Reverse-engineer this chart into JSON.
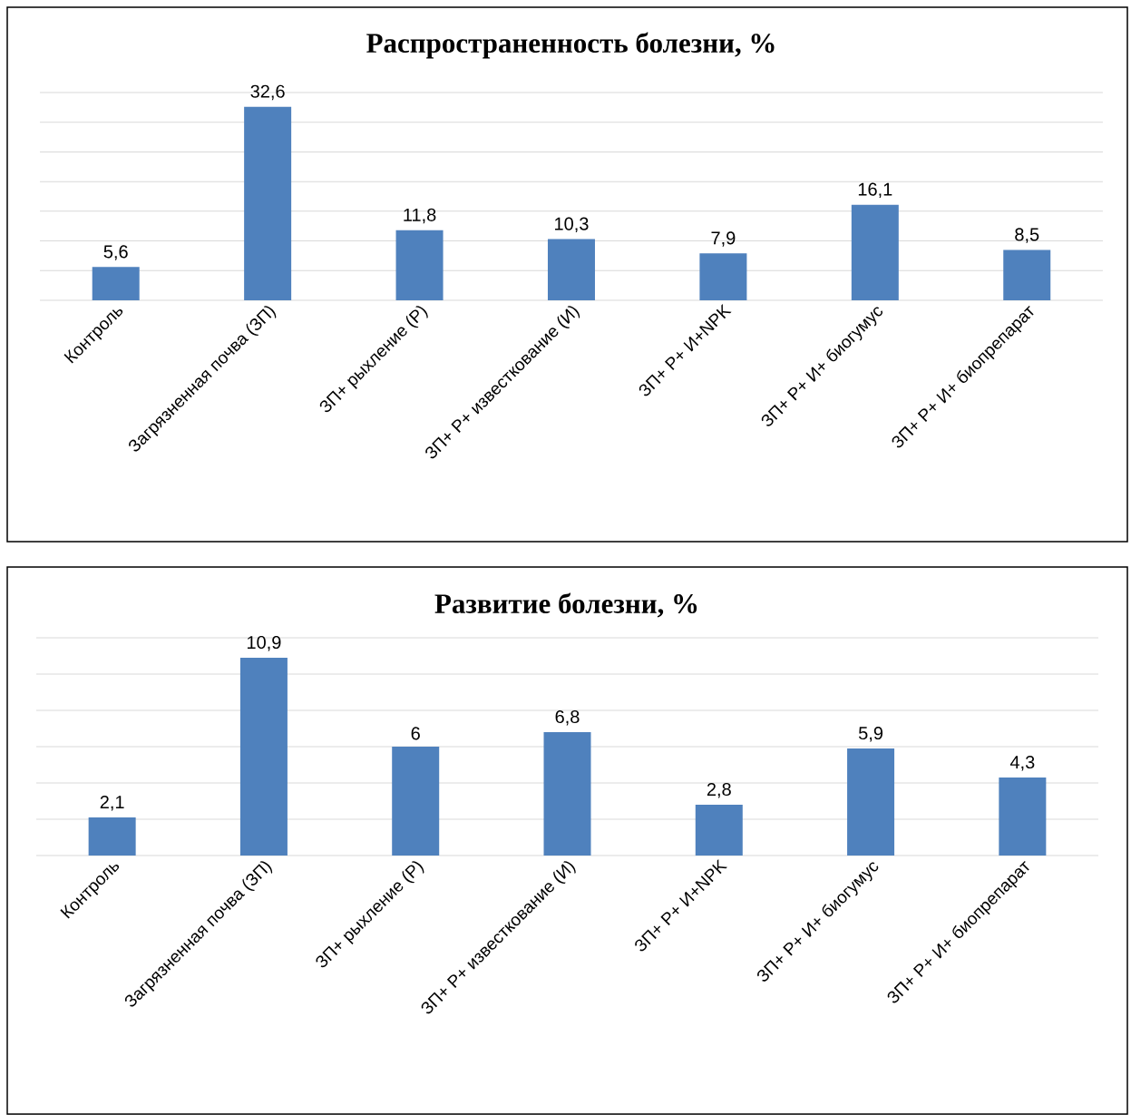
{
  "chart_data": [
    {
      "type": "bar",
      "title": "Распространенность болезни, %",
      "categories": [
        "Контроль",
        "Загрязненная почва (ЗП)",
        "ЗП+ рыхление (Р)",
        "ЗП+ Р+ известкование (И)",
        "ЗП+ Р+ И+NPK",
        "ЗП+ Р+ И+ биогумус",
        "ЗП+ Р+ И+ биопрепарат"
      ],
      "values": [
        5.6,
        32.6,
        11.8,
        10.3,
        7.9,
        16.1,
        8.5
      ],
      "value_labels": [
        "5,6",
        "32,6",
        "11,8",
        "10,3",
        "7,9",
        "16,1",
        "8,5"
      ],
      "color": "#4f81bd",
      "ylim": [
        0,
        35
      ],
      "yticks": [
        {
          "value": 0,
          "label": null
        },
        {
          "value": 5,
          "label": null
        },
        {
          "value": 10,
          "label": null
        },
        {
          "value": 15,
          "label": null
        },
        {
          "value": 20,
          "label": null
        },
        {
          "value": 25,
          "label": null
        },
        {
          "value": 30,
          "label": null
        },
        {
          "value": 35,
          "label": null
        }
      ],
      "grid": "y",
      "tick_labels": "x"
    },
    {
      "type": "bar",
      "title": "Развитие болезни, %",
      "categories": [
        "Контроль",
        "Загрязненная почва (ЗП)",
        "ЗП+ рыхление (Р)",
        "ЗП+ Р+ известкование (И)",
        "ЗП+ Р+ И+NPK",
        "ЗП+ Р+ И+ биогумус",
        "ЗП+ Р+ И+ биопрепарат"
      ],
      "values": [
        2.1,
        10.9,
        6,
        6.8,
        2.8,
        5.9,
        4.3
      ],
      "value_labels": [
        "2,1",
        "10,9",
        "6",
        "6,8",
        "2,8",
        "5,9",
        "4,3"
      ],
      "color": "#4f81bd",
      "ylim": [
        0,
        12
      ],
      "yticks": [
        {
          "value": 0,
          "label": null
        },
        {
          "value": 2,
          "label": null
        },
        {
          "value": 4,
          "label": null
        },
        {
          "value": 6,
          "label": null
        },
        {
          "value": 8,
          "label": null
        },
        {
          "value": 10,
          "label": null
        },
        {
          "value": 12,
          "label": null
        }
      ],
      "grid": "y",
      "tick_labels": "x"
    }
  ]
}
